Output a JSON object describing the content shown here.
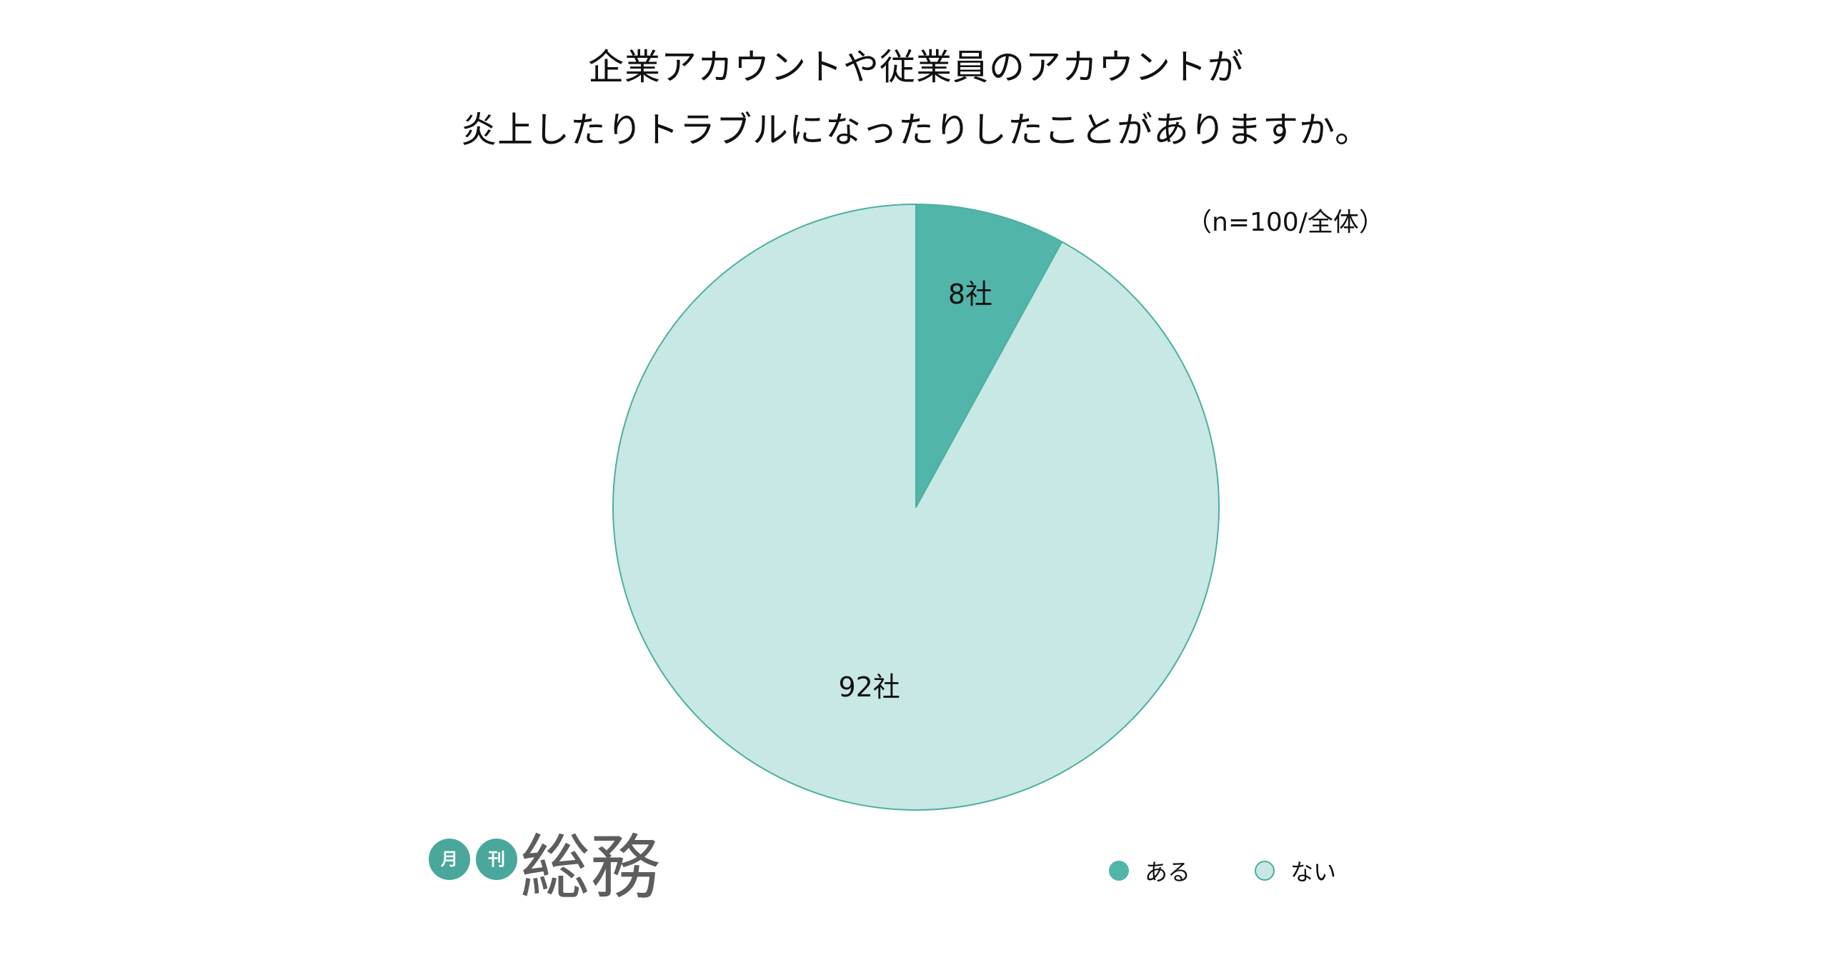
{
  "chart_data": {
    "type": "pie",
    "title_lines": [
      "企業アカウントや従業員のアカウントが",
      "炎上したりトラブルになったりしたことがありますか。"
    ],
    "sample_note": "（n=100/全体）",
    "categories": [
      "ある",
      "ない"
    ],
    "values": [
      8,
      92
    ],
    "data_labels": [
      "8社",
      "92社"
    ],
    "colors": [
      "#52b5aa",
      "#c7e8e4"
    ],
    "edge_color": "#4fae9f",
    "start": "12 o'clock, clockwise",
    "legend_position": "bottom-right"
  },
  "logo": {
    "badge_1": "月",
    "badge_2": "刊",
    "name": "総務",
    "badge_color": "#4aa79c"
  }
}
